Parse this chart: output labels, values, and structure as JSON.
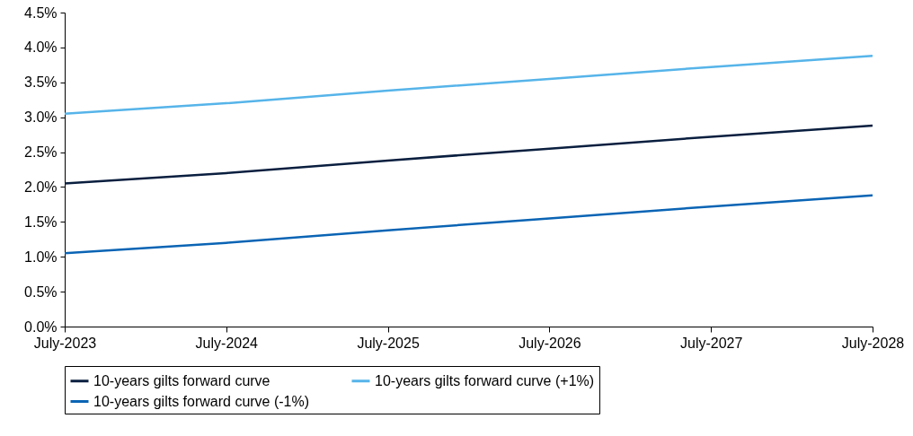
{
  "chart_data": {
    "type": "line",
    "categories": [
      "July-2023",
      "July-2024",
      "July-2025",
      "July-2026",
      "July-2027",
      "July-2028"
    ],
    "series": [
      {
        "name": "10-years gilts forward curve",
        "color": "#0a1f3f",
        "values": [
          2.05,
          2.2,
          2.38,
          2.55,
          2.72,
          2.88
        ]
      },
      {
        "name": "10-years gilts forward curve (+1%)",
        "color": "#56b4e9",
        "values": [
          3.05,
          3.2,
          3.38,
          3.55,
          3.72,
          3.88
        ]
      },
      {
        "name": "10-years gilts forward curve (-1%)",
        "color": "#0a64b4",
        "values": [
          1.05,
          1.2,
          1.38,
          1.55,
          1.72,
          1.88
        ]
      }
    ],
    "ylim": [
      0,
      4.5
    ],
    "yticks": [
      {
        "value": 0,
        "label": "0.0%"
      },
      {
        "value": 0.5,
        "label": "0.5%"
      },
      {
        "value": 1,
        "label": "1.0%"
      },
      {
        "value": 1.5,
        "label": "1.5%"
      },
      {
        "value": 2,
        "label": "2.0%"
      },
      {
        "value": 2.5,
        "label": "2.5%"
      },
      {
        "value": 3,
        "label": "3.0%"
      },
      {
        "value": 3.5,
        "label": "3.5%"
      },
      {
        "value": 4,
        "label": "4.0%"
      },
      {
        "value": 4.5,
        "label": "4.5%"
      }
    ],
    "grid": false,
    "legend": "bottom",
    "marker": "none",
    "line_style": "solid"
  }
}
